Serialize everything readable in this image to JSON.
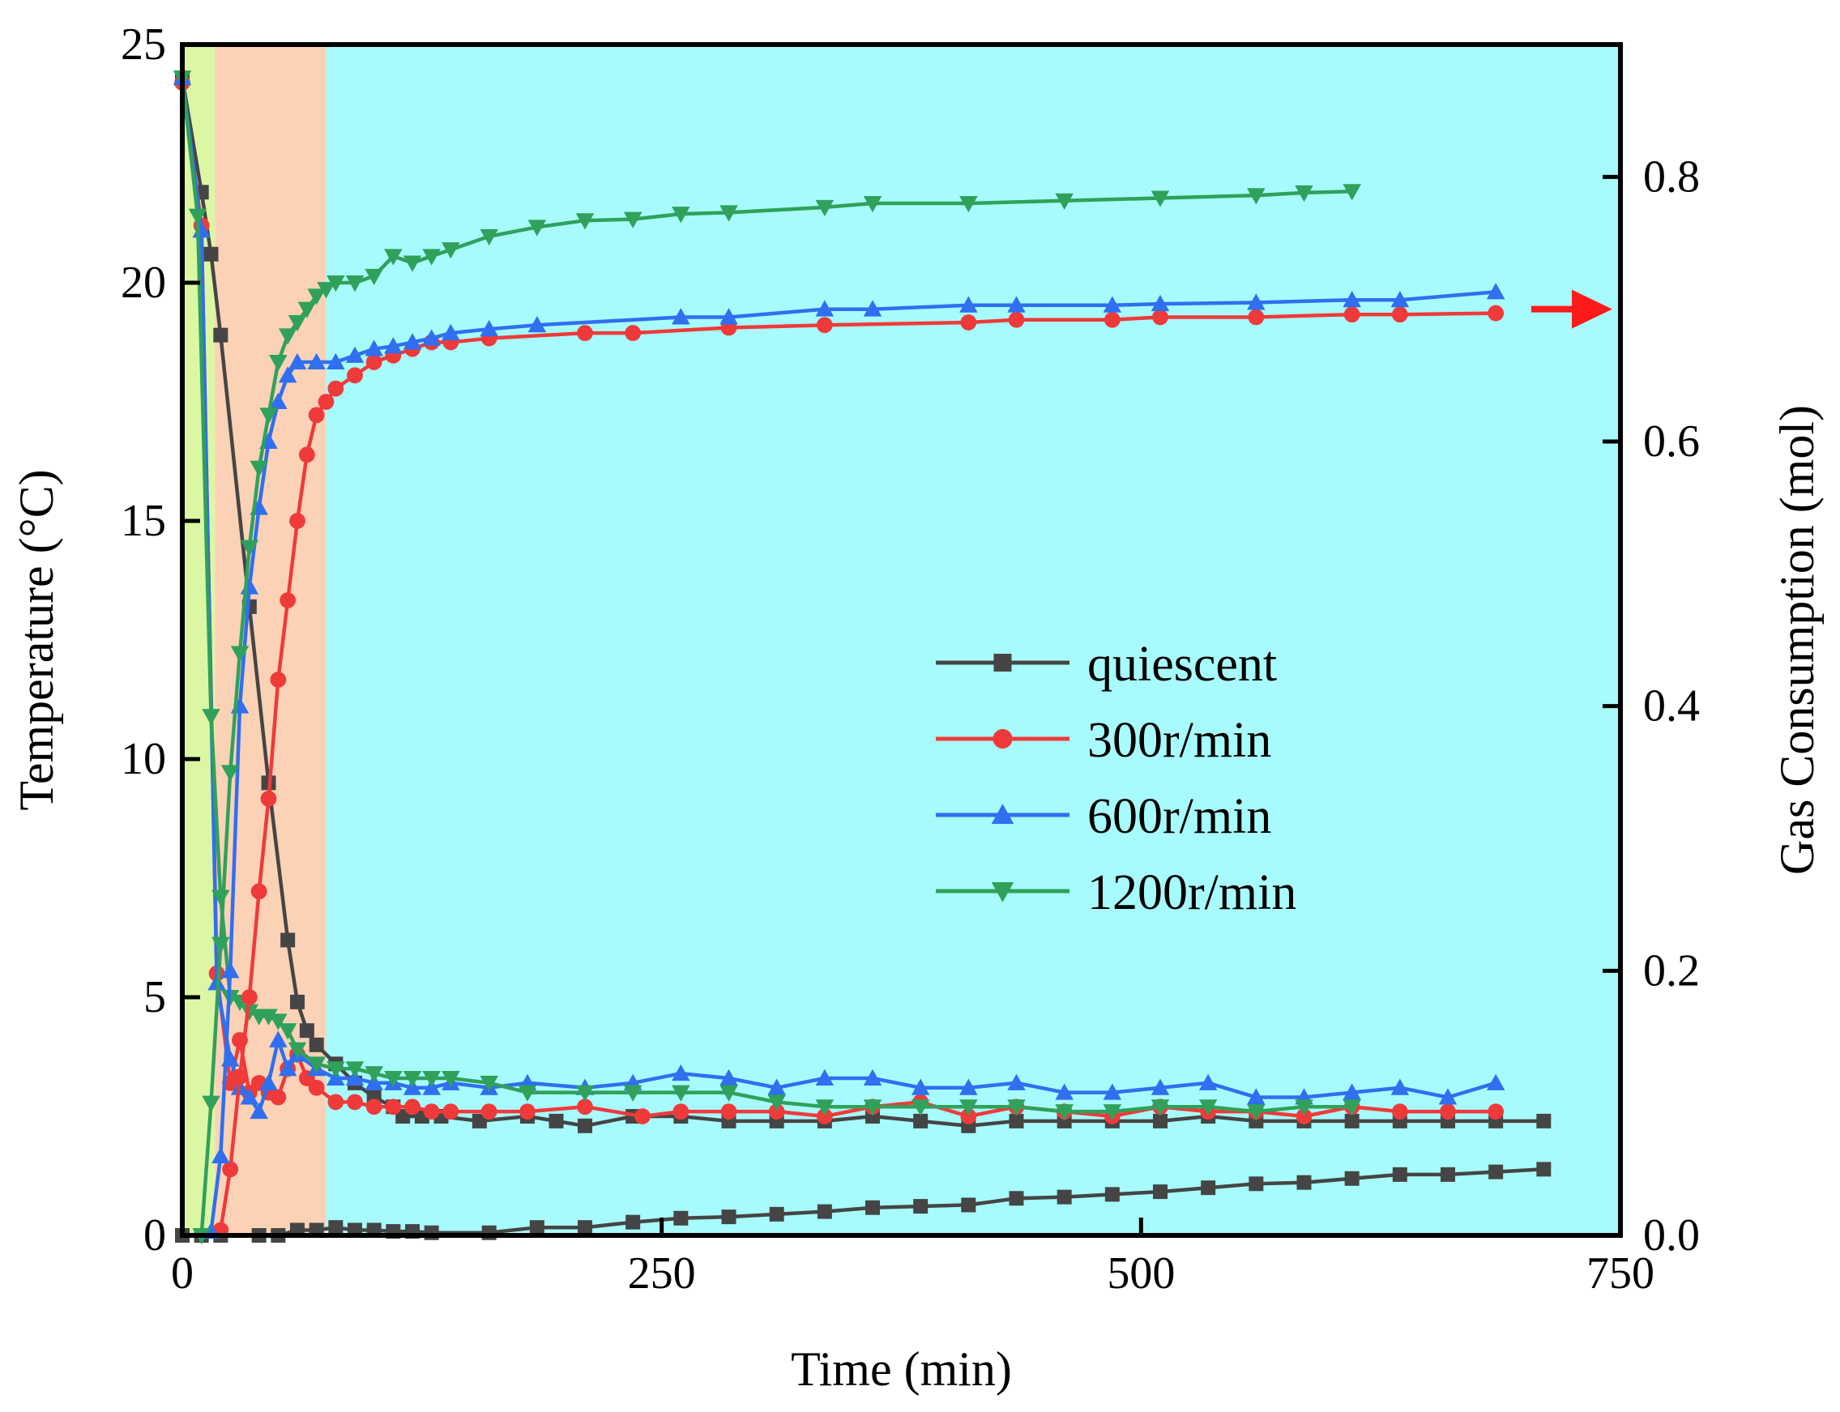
{
  "chart_data": {
    "type": "line",
    "xlabel": "Time (min)",
    "ylabel_left": "Temperature (°C)",
    "ylabel_right": "Gas Consumption (mol)",
    "xlim": [
      0,
      750
    ],
    "ylim_left": [
      0,
      25
    ],
    "ylim_right": [
      0,
      0.9
    ],
    "x_ticks": [
      "0",
      "250",
      "500",
      "750"
    ],
    "y_left_ticks": [
      "0",
      "5",
      "10",
      "15",
      "20",
      "25"
    ],
    "y_right_ticks": [
      "0.0",
      "0.2",
      "0.4",
      "0.6",
      "0.8"
    ],
    "grid": false,
    "legend_position": "center-right",
    "background_regions": [
      {
        "x0": 0,
        "x1": 17,
        "color": "#dcf7a3"
      },
      {
        "x0": 17,
        "x1": 75,
        "color": "#fcd2b6"
      },
      {
        "x0": 75,
        "x1": 750,
        "color": "#a8fbfc"
      }
    ],
    "annotation_arrow": {
      "points_to": "right-axis",
      "at_value": 0.7,
      "color": "#ff1a1a"
    },
    "series": [
      {
        "name": "quiescent",
        "color": "#454545",
        "marker": "square",
        "axis": "left",
        "role": "temperature",
        "x": [
          0,
          10,
          15,
          20,
          35,
          45,
          55,
          60,
          65,
          70,
          80,
          90,
          100,
          110,
          115,
          125,
          135,
          155,
          180,
          195,
          210,
          235,
          260,
          285,
          310,
          335,
          360,
          385,
          410,
          435,
          460,
          485,
          510,
          535,
          560,
          585,
          610,
          635,
          660,
          685,
          710
        ],
        "y": [
          24.3,
          21.9,
          20.6,
          18.9,
          13.2,
          9.5,
          6.2,
          4.9,
          4.3,
          4.0,
          3.6,
          3.2,
          2.9,
          2.7,
          2.5,
          2.5,
          2.5,
          2.4,
          2.5,
          2.4,
          2.3,
          2.5,
          2.5,
          2.4,
          2.4,
          2.4,
          2.5,
          2.4,
          2.3,
          2.4,
          2.4,
          2.4,
          2.4,
          2.5,
          2.4,
          2.4,
          2.4,
          2.4,
          2.4,
          2.4,
          2.4
        ]
      },
      {
        "name": "300r/min",
        "color": "#ef3a3a",
        "marker": "circle",
        "axis": "left",
        "role": "temperature",
        "x": [
          0,
          10,
          18,
          25,
          30,
          35,
          40,
          45,
          50,
          55,
          60,
          65,
          70,
          80,
          90,
          100,
          110,
          120,
          130,
          140,
          160,
          180,
          210,
          240,
          260,
          285,
          310,
          335,
          360,
          385,
          410,
          435,
          460,
          485,
          510,
          535,
          560,
          585,
          610,
          635,
          660,
          685
        ],
        "y": [
          24.2,
          21.2,
          5.5,
          3.2,
          4.1,
          3.0,
          3.2,
          3.0,
          2.9,
          3.5,
          3.8,
          3.3,
          3.1,
          2.8,
          2.8,
          2.7,
          2.7,
          2.7,
          2.6,
          2.6,
          2.6,
          2.6,
          2.7,
          2.5,
          2.6,
          2.6,
          2.6,
          2.5,
          2.7,
          2.8,
          2.5,
          2.7,
          2.6,
          2.5,
          2.7,
          2.6,
          2.6,
          2.5,
          2.7,
          2.6,
          2.6,
          2.6
        ]
      },
      {
        "name": "600r/min",
        "color": "#2f6ff0",
        "marker": "triangle-up",
        "axis": "left",
        "role": "temperature",
        "x": [
          0,
          10,
          18,
          25,
          30,
          35,
          40,
          45,
          50,
          55,
          60,
          70,
          80,
          90,
          100,
          110,
          120,
          130,
          140,
          160,
          180,
          210,
          235,
          260,
          285,
          310,
          335,
          360,
          385,
          410,
          435,
          460,
          485,
          510,
          535,
          560,
          585,
          610,
          635,
          660,
          685
        ],
        "y": [
          24.3,
          21.1,
          5.3,
          3.7,
          3.1,
          2.9,
          2.6,
          3.2,
          4.1,
          3.5,
          3.8,
          3.5,
          3.3,
          3.3,
          3.2,
          3.2,
          3.1,
          3.1,
          3.2,
          3.1,
          3.2,
          3.1,
          3.2,
          3.4,
          3.3,
          3.1,
          3.3,
          3.3,
          3.1,
          3.1,
          3.2,
          3.0,
          3.0,
          3.1,
          3.2,
          2.9,
          2.9,
          3.0,
          3.1,
          2.9,
          3.2
        ]
      },
      {
        "name": "1200r/min",
        "color": "#2fa15a",
        "marker": "triangle-down",
        "axis": "left",
        "role": "temperature",
        "x": [
          0,
          8,
          15,
          20,
          25,
          30,
          35,
          40,
          45,
          50,
          55,
          60,
          70,
          80,
          90,
          100,
          110,
          120,
          130,
          140,
          160,
          180,
          210,
          235,
          260,
          285,
          310,
          335,
          360,
          385,
          410,
          435,
          460,
          485,
          510,
          535,
          560,
          585,
          610
        ],
        "y": [
          24.3,
          21.4,
          10.9,
          7.1,
          5.0,
          4.9,
          4.7,
          4.6,
          4.6,
          4.5,
          4.3,
          3.9,
          3.6,
          3.5,
          3.5,
          3.4,
          3.3,
          3.3,
          3.3,
          3.3,
          3.2,
          3.0,
          3.0,
          3.0,
          3.0,
          3.0,
          2.8,
          2.7,
          2.7,
          2.7,
          2.7,
          2.7,
          2.6,
          2.6,
          2.7,
          2.7,
          2.6,
          2.7,
          2.7
        ]
      },
      {
        "name": "quiescent",
        "color": "#454545",
        "marker": "square",
        "axis": "right",
        "role": "gas consumption",
        "x": [
          0,
          10,
          20,
          40,
          50,
          60,
          70,
          80,
          90,
          100,
          110,
          120,
          130,
          160,
          185,
          210,
          235,
          260,
          285,
          310,
          335,
          360,
          385,
          410,
          435,
          460,
          485,
          510,
          535,
          560,
          585,
          610,
          635,
          660,
          685,
          710
        ],
        "y": [
          0.0,
          0.0,
          0.0,
          0.0,
          0.0,
          0.004,
          0.004,
          0.006,
          0.004,
          0.004,
          0.003,
          0.003,
          0.002,
          0.002,
          0.006,
          0.006,
          0.01,
          0.013,
          0.014,
          0.016,
          0.018,
          0.021,
          0.022,
          0.023,
          0.028,
          0.029,
          0.031,
          0.033,
          0.036,
          0.039,
          0.04,
          0.043,
          0.046,
          0.046,
          0.048,
          0.05
        ]
      },
      {
        "name": "300r/min",
        "color": "#ef3a3a",
        "marker": "circle",
        "axis": "right",
        "role": "gas consumption",
        "x": [
          20,
          25,
          30,
          35,
          40,
          45,
          50,
          55,
          60,
          65,
          70,
          75,
          80,
          90,
          100,
          110,
          120,
          130,
          140,
          160,
          210,
          235,
          285,
          335,
          410,
          435,
          485,
          510,
          560,
          610,
          635,
          685
        ],
        "y": [
          0.004,
          0.05,
          0.12,
          0.18,
          0.26,
          0.33,
          0.42,
          0.48,
          0.54,
          0.59,
          0.62,
          0.63,
          0.64,
          0.65,
          0.66,
          0.665,
          0.67,
          0.675,
          0.675,
          0.678,
          0.682,
          0.682,
          0.686,
          0.688,
          0.69,
          0.692,
          0.692,
          0.694,
          0.694,
          0.696,
          0.696,
          0.697
        ]
      },
      {
        "name": "600r/min",
        "color": "#2f6ff0",
        "marker": "triangle-up",
        "axis": "right",
        "role": "gas consumption",
        "x": [
          15,
          20,
          25,
          30,
          35,
          40,
          45,
          50,
          55,
          60,
          70,
          80,
          90,
          100,
          110,
          120,
          130,
          140,
          160,
          185,
          260,
          285,
          335,
          360,
          410,
          435,
          485,
          510,
          560,
          610,
          635,
          685
        ],
        "y": [
          0.003,
          0.06,
          0.2,
          0.4,
          0.49,
          0.55,
          0.6,
          0.63,
          0.65,
          0.66,
          0.66,
          0.66,
          0.665,
          0.67,
          0.672,
          0.675,
          0.678,
          0.682,
          0.685,
          0.688,
          0.694,
          0.694,
          0.7,
          0.7,
          0.703,
          0.703,
          0.703,
          0.704,
          0.705,
          0.707,
          0.707,
          0.713
        ]
      },
      {
        "name": "1200r/min",
        "color": "#2fa15a",
        "marker": "triangle-down",
        "axis": "right",
        "role": "gas consumption",
        "x": [
          10,
          15,
          20,
          25,
          30,
          35,
          40,
          45,
          50,
          55,
          60,
          65,
          70,
          75,
          80,
          90,
          100,
          110,
          120,
          130,
          140,
          160,
          185,
          210,
          235,
          260,
          285,
          335,
          360,
          410,
          460,
          510,
          560,
          585,
          610
        ],
        "y": [
          0.0,
          0.1,
          0.22,
          0.35,
          0.44,
          0.52,
          0.58,
          0.62,
          0.66,
          0.68,
          0.69,
          0.7,
          0.71,
          0.715,
          0.72,
          0.72,
          0.725,
          0.74,
          0.735,
          0.74,
          0.745,
          0.755,
          0.762,
          0.767,
          0.768,
          0.772,
          0.773,
          0.777,
          0.78,
          0.78,
          0.782,
          0.784,
          0.786,
          0.788,
          0.789
        ]
      }
    ],
    "legend": [
      {
        "name": "quiescent",
        "color": "#454545",
        "marker": "square"
      },
      {
        "name": "300r/min",
        "color": "#ef3a3a",
        "marker": "circle"
      },
      {
        "name": "600r/min",
        "color": "#2f6ff0",
        "marker": "triangle-up"
      },
      {
        "name": "1200r/min",
        "color": "#2fa15a",
        "marker": "triangle-down"
      }
    ]
  }
}
